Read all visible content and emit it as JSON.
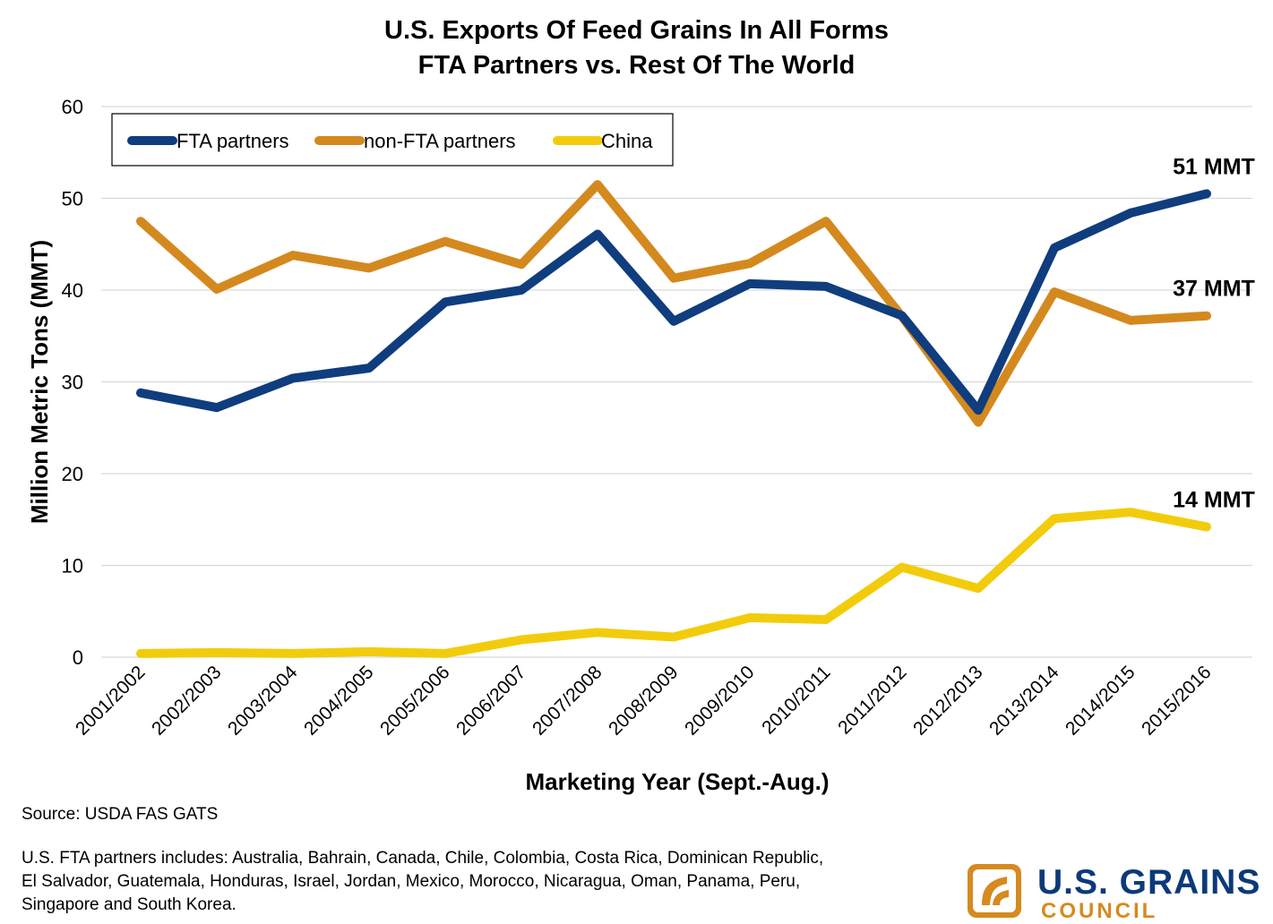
{
  "chart_data": {
    "type": "line",
    "title": "U.S. Exports Of Feed Grains In All Forms",
    "subtitle": "FTA Partners vs. Rest Of The World",
    "xlabel": "Marketing Year (Sept.-Aug.)",
    "ylabel": "Million Metric Tons (MMT)",
    "ylim": [
      0,
      60
    ],
    "yticks": [
      "0",
      "10",
      "20",
      "30",
      "40",
      "50",
      "60"
    ],
    "grid": "horizontal",
    "legend_position": "top-left",
    "categories": [
      "2001/2002",
      "2002/2003",
      "2003/2004",
      "2004/2005",
      "2005/2006",
      "2006/2007",
      "2007/2008",
      "2008/2009",
      "2009/2010",
      "2010/2011",
      "2011/2012",
      "2012/2013",
      "2013/2014",
      "2014/2015",
      "2015/2016"
    ],
    "series": [
      {
        "name": "FTA partners",
        "color": "#0f3d7e",
        "values": [
          28.8,
          27.2,
          30.4,
          31.5,
          38.7,
          40.0,
          46.1,
          36.6,
          40.7,
          40.4,
          37.2,
          26.9,
          44.6,
          48.4,
          50.5
        ]
      },
      {
        "name": "non-FTA partners",
        "color": "#d4891f",
        "values": [
          47.5,
          40.1,
          43.8,
          42.4,
          45.3,
          42.8,
          51.5,
          41.3,
          42.9,
          47.5,
          37.1,
          25.6,
          39.8,
          36.7,
          37.2
        ]
      },
      {
        "name": "China",
        "color": "#f2cc0c",
        "values": [
          0.4,
          0.5,
          0.4,
          0.6,
          0.4,
          1.9,
          2.7,
          2.2,
          4.3,
          4.1,
          9.8,
          7.5,
          15.1,
          15.8,
          14.2
        ]
      }
    ],
    "annotations": [
      {
        "text": "51 MMT",
        "series": "FTA partners"
      },
      {
        "text": "37 MMT",
        "series": "non-FTA partners"
      },
      {
        "text": "14 MMT",
        "series": "China"
      }
    ]
  },
  "notes": {
    "source": "Source: USDA FAS GATS",
    "fta_line1": "U.S. FTA partners includes: Australia, Bahrain, Canada, Chile, Colombia, Costa Rica, Dominican Republic,",
    "fta_line2": "El Salvador, Guatemala, Honduras, Israel, Jordan, Mexico, Morocco, Nicaragua, Oman, Panama, Peru,",
    "fta_line3": "Singapore and South Korea."
  },
  "logo": {
    "line1": "U.S. GRAINS",
    "line2": "COUNCIL",
    "primary_color": "#0c3a7a",
    "accent_color": "#d68a1f"
  }
}
